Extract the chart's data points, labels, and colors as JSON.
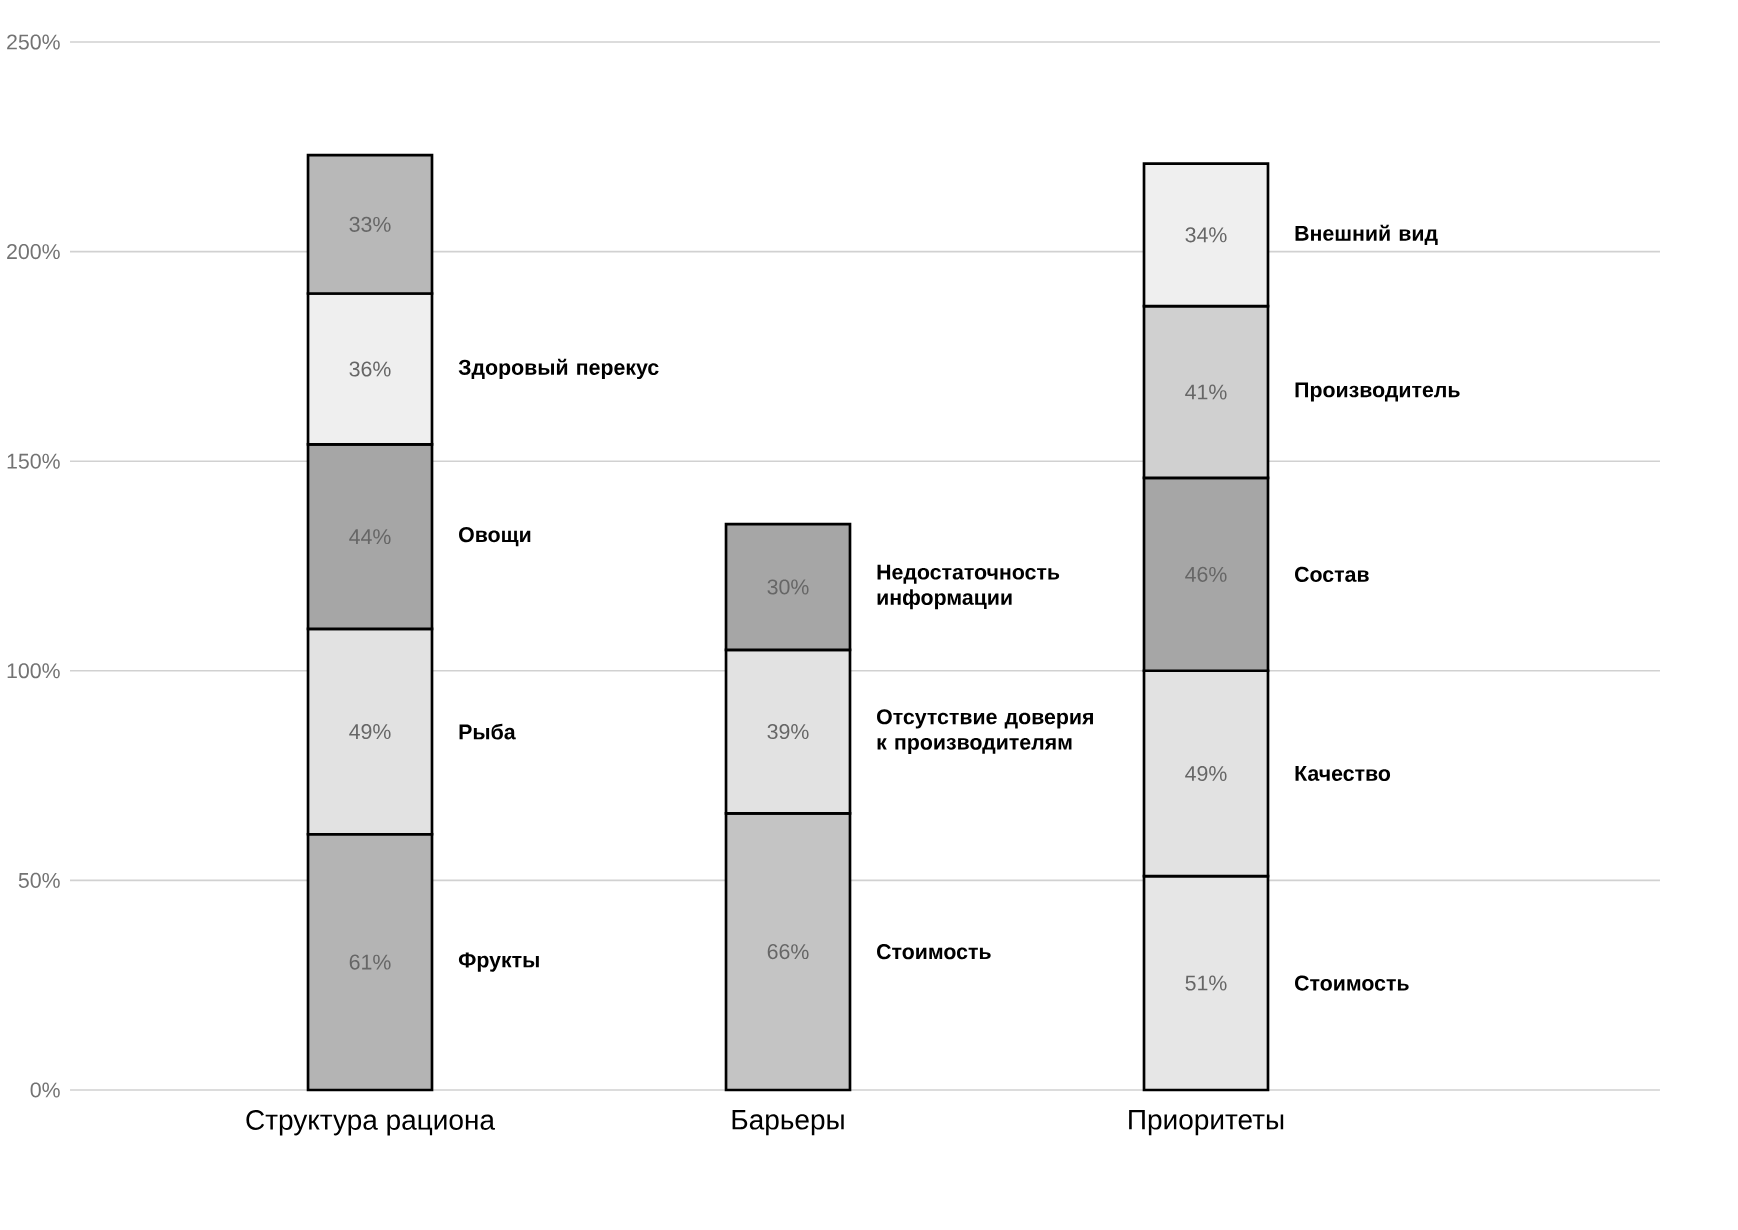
{
  "chart_data": {
    "type": "bar",
    "stacked": true,
    "grid": "y",
    "categories": [
      "Структура рациона",
      "Барьеры",
      "Приоритеты"
    ],
    "ylim": [
      0,
      250
    ],
    "yticks": [
      {
        "value": 0,
        "label": "0%"
      },
      {
        "value": 50,
        "label": "50%"
      },
      {
        "value": 100,
        "label": "100%"
      },
      {
        "value": 150,
        "label": "150%"
      },
      {
        "value": 200,
        "label": "200%"
      },
      {
        "value": 250,
        "label": "250%"
      }
    ],
    "series": [
      {
        "name": "Фрукты",
        "color": "#b4b4b4",
        "values": [
          61,
          null,
          null
        ],
        "value_labels": [
          "61%",
          null,
          null
        ]
      },
      {
        "name": "Рыба",
        "color": "#e2e2e2",
        "values": [
          49,
          null,
          null
        ],
        "value_labels": [
          "49%",
          null,
          null
        ]
      },
      {
        "name": "Овощи",
        "color": "#a6a6a6",
        "values": [
          44,
          null,
          null
        ],
        "value_labels": [
          "44%",
          null,
          null
        ]
      },
      {
        "name": "Здоровый перекус",
        "color": "#efefef",
        "values": [
          36,
          null,
          null
        ],
        "value_labels": [
          "36%",
          null,
          null
        ]
      },
      {
        "color": "#b8b8b8",
        "values": [
          33,
          null,
          null
        ],
        "value_labels": [
          "33%",
          null,
          null
        ]
      },
      {
        "name": "Стоимость",
        "color": "#c4c4c4",
        "values": [
          null,
          66,
          null
        ],
        "value_labels": [
          null,
          "66%",
          null
        ]
      },
      {
        "name": "Отсутствие доверия к производителям",
        "color": "#e2e2e2",
        "values": [
          null,
          39,
          null
        ],
        "value_labels": [
          null,
          "39%",
          null
        ]
      },
      {
        "name": "Недостаточность информации",
        "color": "#a6a6a6",
        "values": [
          null,
          30,
          null
        ],
        "value_labels": [
          null,
          "30%",
          null
        ]
      },
      {
        "name": "Стоимость",
        "color": "#e6e6e6",
        "values": [
          null,
          null,
          51
        ],
        "value_labels": [
          null,
          null,
          "51%"
        ]
      },
      {
        "name": "Качество",
        "color": "#e2e2e2",
        "values": [
          null,
          null,
          49
        ],
        "value_labels": [
          null,
          null,
          "49%"
        ]
      },
      {
        "name": "Состав",
        "color": "#a6a6a6",
        "values": [
          null,
          null,
          46
        ],
        "value_labels": [
          null,
          null,
          "46%"
        ]
      },
      {
        "name": "Производитель",
        "color": "#d0d0d0",
        "values": [
          null,
          null,
          41
        ],
        "value_labels": [
          null,
          null,
          "41%"
        ]
      },
      {
        "name": "Внешний вид",
        "color": "#efefef",
        "values": [
          null,
          null,
          34
        ],
        "value_labels": [
          null,
          null,
          "34%"
        ]
      }
    ]
  }
}
